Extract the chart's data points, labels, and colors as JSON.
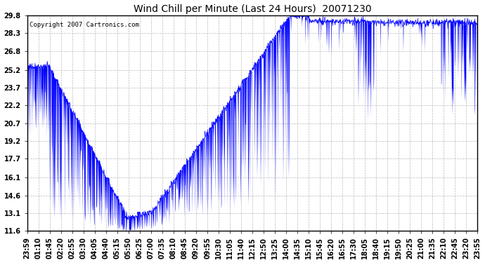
{
  "title": "Wind Chill per Minute (Last 24 Hours)  20071230",
  "copyright": "Copyright 2007 Cartronics.com",
  "yticks": [
    11.6,
    13.1,
    14.6,
    16.1,
    17.7,
    19.2,
    20.7,
    22.2,
    23.7,
    25.2,
    26.8,
    28.3,
    29.8
  ],
  "ylim_min": 11.6,
  "ylim_max": 29.8,
  "xtick_labels": [
    "23:59",
    "01:10",
    "01:45",
    "02:20",
    "02:55",
    "03:30",
    "04:05",
    "04:40",
    "05:15",
    "05:50",
    "06:25",
    "07:00",
    "07:35",
    "08:10",
    "08:45",
    "09:20",
    "09:55",
    "10:30",
    "11:05",
    "11:40",
    "12:15",
    "12:50",
    "13:25",
    "14:00",
    "14:35",
    "15:10",
    "15:45",
    "16:20",
    "16:55",
    "17:30",
    "18:05",
    "18:40",
    "19:15",
    "19:50",
    "20:25",
    "21:00",
    "21:35",
    "22:10",
    "22:45",
    "23:20",
    "23:55"
  ],
  "line_color": "#0000ff",
  "bg_color": "#ffffff",
  "grid_color": "#aaaaaa",
  "title_fontsize": 10,
  "tick_fontsize": 7,
  "copyright_fontsize": 6.5
}
